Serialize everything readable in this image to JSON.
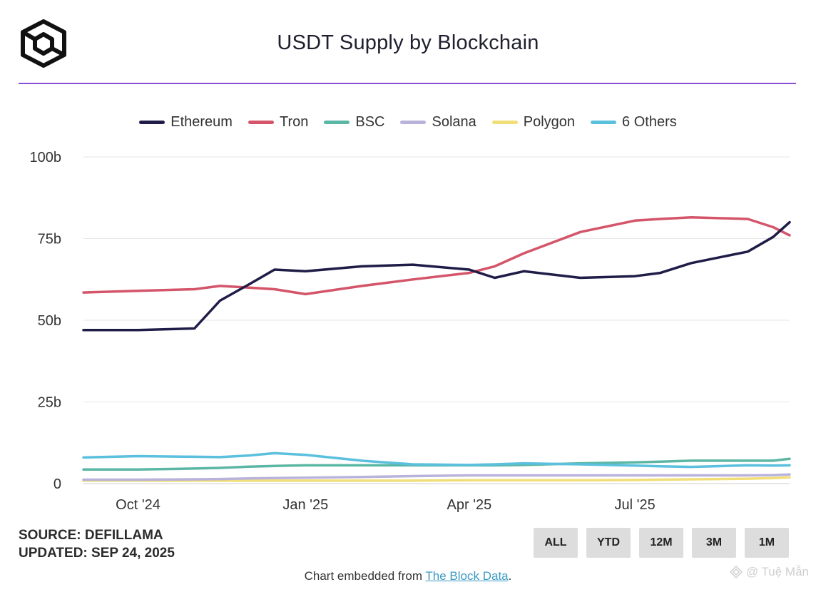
{
  "header": {
    "title": "USDT Supply by Blockchain"
  },
  "colors": {
    "accent_line": "#8a4fd8",
    "Ethereum": "#1f1d47",
    "Tron": "#d4556a",
    "BSC": "#5bb7a4",
    "Solana": "#b9b3dc",
    "Polygon": "#f1de78",
    "6 Others": "#5bc0de"
  },
  "footer": {
    "source": "SOURCE: DEFILLAMA",
    "updated": "UPDATED: SEP 24, 2025",
    "embed_prefix": "Chart embedded from ",
    "embed_link": "The Block Data",
    "embed_suffix": ".",
    "watermark": "@ Tuệ Mẫn"
  },
  "range_buttons": [
    "ALL",
    "YTD",
    "12M",
    "3M",
    "1M"
  ],
  "chart_data": {
    "type": "line",
    "title": "USDT Supply by Blockchain",
    "xlabel": "",
    "ylabel": "",
    "ylim": [
      0,
      100
    ],
    "y_ticks": [
      "0",
      "25b",
      "50b",
      "75b",
      "100b"
    ],
    "x_ticks": [
      "Oct '24",
      "Jan '25",
      "Apr '25",
      "Jul '25"
    ],
    "grid": true,
    "legend_position": "top-center",
    "x": [
      "2024-09-01",
      "2024-10-01",
      "2024-11-01",
      "2024-11-15",
      "2024-12-01",
      "2024-12-15",
      "2025-01-01",
      "2025-02-01",
      "2025-03-01",
      "2025-04-01",
      "2025-04-15",
      "2025-05-01",
      "2025-06-01",
      "2025-07-01",
      "2025-07-15",
      "2025-08-01",
      "2025-09-01",
      "2025-09-15",
      "2025-09-24"
    ],
    "series": [
      {
        "name": "Ethereum",
        "values": [
          47,
          47,
          47.5,
          56,
          61,
          65.5,
          65,
          66.5,
          67,
          65.5,
          63,
          65,
          63,
          63.5,
          64.5,
          67.5,
          71,
          75.5,
          80
        ]
      },
      {
        "name": "Tron",
        "values": [
          58.5,
          59,
          59.5,
          60.5,
          60,
          59.5,
          58,
          60.5,
          62.5,
          64.5,
          66.5,
          70.5,
          77,
          80.5,
          81,
          81.5,
          81,
          78.5,
          76
        ]
      },
      {
        "name": "BSC",
        "values": [
          4.3,
          4.3,
          4.6,
          4.8,
          5.2,
          5.4,
          5.6,
          5.6,
          5.6,
          5.6,
          5.6,
          5.7,
          6.2,
          6.5,
          6.7,
          7,
          7,
          7,
          7.6
        ]
      },
      {
        "name": "Solana",
        "values": [
          1.2,
          1.2,
          1.3,
          1.4,
          1.6,
          1.7,
          1.8,
          2,
          2.3,
          2.5,
          2.5,
          2.5,
          2.5,
          2.5,
          2.5,
          2.5,
          2.5,
          2.6,
          2.8
        ]
      },
      {
        "name": "Polygon",
        "values": [
          0.9,
          0.9,
          0.9,
          0.9,
          0.9,
          0.9,
          0.9,
          0.9,
          0.9,
          1,
          1,
          1,
          1,
          1.1,
          1.2,
          1.3,
          1.5,
          1.7,
          1.9
        ]
      },
      {
        "name": "6 Others",
        "values": [
          8,
          8.4,
          8.2,
          8.1,
          8.6,
          9.3,
          8.8,
          7,
          5.9,
          5.7,
          5.9,
          6.2,
          5.9,
          5.5,
          5.3,
          5.1,
          5.6,
          5.5,
          5.6
        ]
      }
    ]
  }
}
